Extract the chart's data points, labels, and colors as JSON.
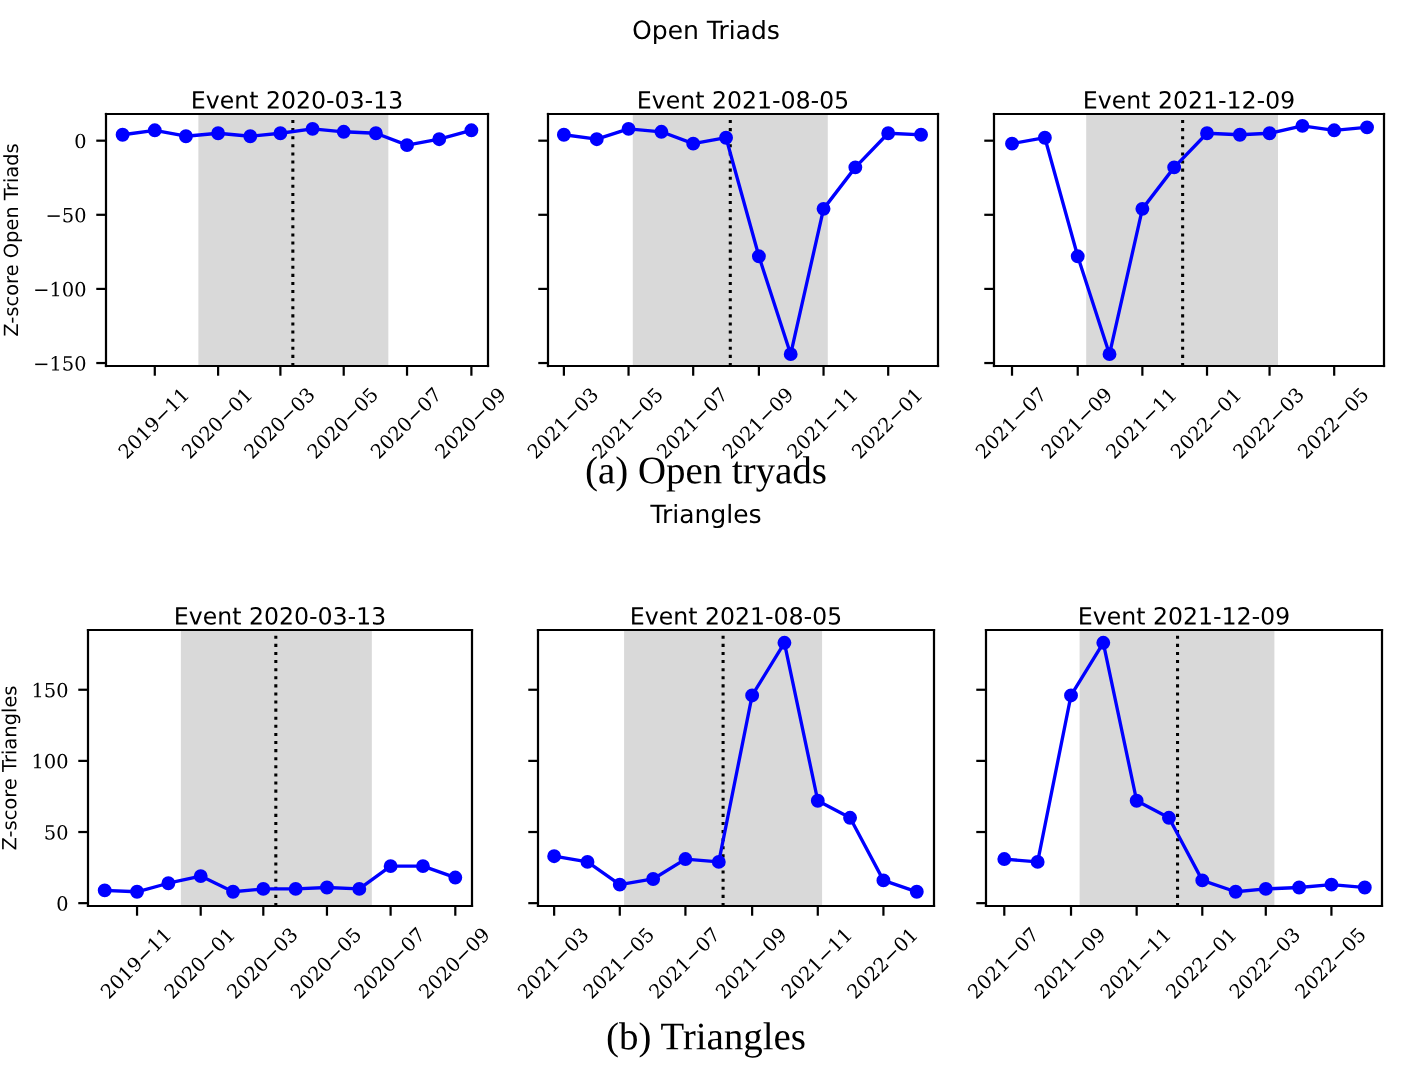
{
  "chart_data": [
    {
      "type": "line",
      "title": "Event 2020-03-13",
      "ylabel": "Z-score Open Triads",
      "annotations": [
        "Open Triads",
        "(a) Open tryads"
      ],
      "x": [
        "2019-10-01",
        "2019-11-01",
        "2019-12-01",
        "2020-01-01",
        "2020-02-01",
        "2020-03-01",
        "2020-04-01",
        "2020-05-01",
        "2020-06-01",
        "2020-07-01",
        "2020-08-01",
        "2020-09-01"
      ],
      "series": [
        {
          "color": "#0000ff",
          "values": [
            4,
            7,
            3,
            5,
            3,
            5,
            8,
            6,
            5,
            -3,
            1,
            7
          ]
        }
      ],
      "xlim": [
        "2019-09-15",
        "2020-09-17"
      ],
      "xticks": [
        {
          "value": "2019-11-01",
          "label": "2019−11"
        },
        {
          "value": "2020-01-01",
          "label": "2020−01"
        },
        {
          "value": "2020-03-01",
          "label": "2020−03"
        },
        {
          "value": "2020-05-01",
          "label": "2020−05"
        },
        {
          "value": "2020-07-01",
          "label": "2020−07"
        },
        {
          "value": "2020-09-01",
          "label": "2020−09"
        }
      ],
      "ylim": [
        -152,
        18
      ],
      "yticks": [
        {
          "value": -150,
          "label": "−150"
        },
        {
          "value": -100,
          "label": "−100"
        },
        {
          "value": -50,
          "label": "−50"
        },
        0
      ],
      "ref_lines": [
        {
          "axis": "x",
          "value": "2020-03-13",
          "color": "#000000",
          "line_style": "dotted"
        }
      ],
      "bands": [
        {
          "axis": "x",
          "from": "2019-12-13",
          "to": "2020-06-13",
          "color": "#d9d9d9"
        }
      ],
      "marker": "circle",
      "line_style": "solid",
      "grid": false,
      "legend": false
    },
    {
      "type": "line",
      "title": "Event 2021-08-05",
      "x": [
        "2021-03-01",
        "2021-04-01",
        "2021-05-01",
        "2021-06-01",
        "2021-07-01",
        "2021-08-01",
        "2021-09-01",
        "2021-10-01",
        "2021-11-01",
        "2021-12-01",
        "2022-01-01",
        "2022-02-01"
      ],
      "series": [
        {
          "color": "#0000ff",
          "values": [
            4,
            1,
            8,
            6,
            -2,
            2,
            -78,
            -144,
            -46,
            -18,
            5,
            4
          ]
        }
      ],
      "xlim": [
        "2021-02-14",
        "2022-02-17"
      ],
      "xticks": [
        {
          "value": "2021-03-01",
          "label": "2021−03"
        },
        {
          "value": "2021-05-01",
          "label": "2021−05"
        },
        {
          "value": "2021-07-01",
          "label": "2021−07"
        },
        {
          "value": "2021-09-01",
          "label": "2021−09"
        },
        {
          "value": "2021-11-01",
          "label": "2021−11"
        },
        {
          "value": "2022-01-01",
          "label": "2022−01"
        }
      ],
      "ylim": [
        -152,
        18
      ],
      "yticks": [
        {
          "value": -150,
          "label": null
        },
        {
          "value": -100,
          "label": null
        },
        {
          "value": -50,
          "label": null
        },
        {
          "value": 0,
          "label": null
        }
      ],
      "tick_labels": "x",
      "ref_lines": [
        {
          "axis": "x",
          "value": "2021-08-05",
          "color": "#000000",
          "line_style": "dotted"
        }
      ],
      "bands": [
        {
          "axis": "x",
          "from": "2021-05-05",
          "to": "2021-11-05",
          "color": "#d9d9d9"
        }
      ],
      "marker": "circle",
      "line_style": "solid",
      "grid": false,
      "legend": false
    },
    {
      "type": "line",
      "title": "Event 2021-12-09",
      "x": [
        "2021-07-01",
        "2021-08-01",
        "2021-09-01",
        "2021-10-01",
        "2021-11-01",
        "2021-12-01",
        "2022-01-01",
        "2022-02-01",
        "2022-03-01",
        "2022-04-01",
        "2022-05-01",
        "2022-06-01"
      ],
      "series": [
        {
          "color": "#0000ff",
          "values": [
            -2,
            2,
            -78,
            -144,
            -46,
            -18,
            5,
            4,
            5,
            10,
            7,
            9
          ]
        }
      ],
      "xlim": [
        "2021-06-14",
        "2022-06-17"
      ],
      "xticks": [
        {
          "value": "2021-07-01",
          "label": "2021−07"
        },
        {
          "value": "2021-09-01",
          "label": "2021−09"
        },
        {
          "value": "2021-11-01",
          "label": "2021−11"
        },
        {
          "value": "2022-01-01",
          "label": "2022−01"
        },
        {
          "value": "2022-03-01",
          "label": "2022−03"
        },
        {
          "value": "2022-05-01",
          "label": "2022−05"
        }
      ],
      "ylim": [
        -152,
        18
      ],
      "yticks": [
        {
          "value": -150,
          "label": null
        },
        {
          "value": -100,
          "label": null
        },
        {
          "value": -50,
          "label": null
        },
        {
          "value": 0,
          "label": null
        }
      ],
      "tick_labels": "x",
      "ref_lines": [
        {
          "axis": "x",
          "value": "2021-12-09",
          "color": "#000000",
          "line_style": "dotted"
        }
      ],
      "bands": [
        {
          "axis": "x",
          "from": "2021-09-09",
          "to": "2022-03-09",
          "color": "#d9d9d9"
        }
      ],
      "marker": "circle",
      "line_style": "solid",
      "grid": false,
      "legend": false
    },
    {
      "type": "line",
      "title": "Event 2020-03-13",
      "ylabel": "Z-score Triangles",
      "annotations": [
        "Triangles",
        "(b) Triangles"
      ],
      "x": [
        "2019-10-01",
        "2019-11-01",
        "2019-12-01",
        "2020-01-01",
        "2020-02-01",
        "2020-03-01",
        "2020-04-01",
        "2020-05-01",
        "2020-06-01",
        "2020-07-01",
        "2020-08-01",
        "2020-09-01"
      ],
      "series": [
        {
          "color": "#0000ff",
          "values": [
            9,
            8,
            14,
            19,
            8,
            10,
            10,
            11,
            10,
            26,
            26,
            18
          ]
        }
      ],
      "xlim": [
        "2019-09-15",
        "2020-09-17"
      ],
      "xticks": [
        {
          "value": "2019-11-01",
          "label": "2019−11"
        },
        {
          "value": "2020-01-01",
          "label": "2020−01"
        },
        {
          "value": "2020-03-01",
          "label": "2020−03"
        },
        {
          "value": "2020-05-01",
          "label": "2020−05"
        },
        {
          "value": "2020-07-01",
          "label": "2020−07"
        },
        {
          "value": "2020-09-01",
          "label": "2020−09"
        }
      ],
      "ylim": [
        -2,
        192
      ],
      "yticks": [
        0,
        50,
        100,
        150
      ],
      "ref_lines": [
        {
          "axis": "x",
          "value": "2020-03-13",
          "color": "#000000",
          "line_style": "dotted"
        }
      ],
      "bands": [
        {
          "axis": "x",
          "from": "2019-12-13",
          "to": "2020-06-13",
          "color": "#d9d9d9"
        }
      ],
      "marker": "circle",
      "line_style": "solid",
      "grid": false,
      "legend": false
    },
    {
      "type": "line",
      "title": "Event 2021-08-05",
      "x": [
        "2021-03-01",
        "2021-04-01",
        "2021-05-01",
        "2021-06-01",
        "2021-07-01",
        "2021-08-01",
        "2021-09-01",
        "2021-10-01",
        "2021-11-01",
        "2021-12-01",
        "2022-01-01",
        "2022-02-01"
      ],
      "series": [
        {
          "color": "#0000ff",
          "values": [
            33,
            29,
            13,
            17,
            31,
            29,
            146,
            183,
            72,
            60,
            16,
            8
          ]
        }
      ],
      "xlim": [
        "2021-02-14",
        "2022-02-17"
      ],
      "xticks": [
        {
          "value": "2021-03-01",
          "label": "2021−03"
        },
        {
          "value": "2021-05-01",
          "label": "2021−05"
        },
        {
          "value": "2021-07-01",
          "label": "2021−07"
        },
        {
          "value": "2021-09-01",
          "label": "2021−09"
        },
        {
          "value": "2021-11-01",
          "label": "2021−11"
        },
        {
          "value": "2022-01-01",
          "label": "2022−01"
        }
      ],
      "ylim": [
        -2,
        192
      ],
      "yticks": [
        {
          "value": 0,
          "label": null
        },
        {
          "value": 50,
          "label": null
        },
        {
          "value": 100,
          "label": null
        },
        {
          "value": 150,
          "label": null
        }
      ],
      "tick_labels": "x",
      "ref_lines": [
        {
          "axis": "x",
          "value": "2021-08-05",
          "color": "#000000",
          "line_style": "dotted"
        }
      ],
      "bands": [
        {
          "axis": "x",
          "from": "2021-05-05",
          "to": "2021-11-05",
          "color": "#d9d9d9"
        }
      ],
      "marker": "circle",
      "line_style": "solid",
      "grid": false,
      "legend": false
    },
    {
      "type": "line",
      "title": "Event 2021-12-09",
      "x": [
        "2021-07-01",
        "2021-08-01",
        "2021-09-01",
        "2021-10-01",
        "2021-11-01",
        "2021-12-01",
        "2022-01-01",
        "2022-02-01",
        "2022-03-01",
        "2022-04-01",
        "2022-05-01",
        "2022-06-01"
      ],
      "series": [
        {
          "color": "#0000ff",
          "values": [
            31,
            29,
            146,
            183,
            72,
            60,
            16,
            8,
            10,
            11,
            13,
            11
          ]
        }
      ],
      "xlim": [
        "2021-06-14",
        "2022-06-17"
      ],
      "xticks": [
        {
          "value": "2021-07-01",
          "label": "2021−07"
        },
        {
          "value": "2021-09-01",
          "label": "2021−09"
        },
        {
          "value": "2021-11-01",
          "label": "2021−11"
        },
        {
          "value": "2022-01-01",
          "label": "2022−01"
        },
        {
          "value": "2022-03-01",
          "label": "2022−03"
        },
        {
          "value": "2022-05-01",
          "label": "2022−05"
        }
      ],
      "ylim": [
        -2,
        192
      ],
      "yticks": [
        {
          "value": 0,
          "label": null
        },
        {
          "value": 50,
          "label": null
        },
        {
          "value": 100,
          "label": null
        },
        {
          "value": 150,
          "label": null
        }
      ],
      "tick_labels": "x",
      "ref_lines": [
        {
          "axis": "x",
          "value": "2021-12-09",
          "color": "#000000",
          "line_style": "dotted"
        }
      ],
      "bands": [
        {
          "axis": "x",
          "from": "2021-09-09",
          "to": "2022-03-09",
          "color": "#d9d9d9"
        }
      ],
      "marker": "circle",
      "line_style": "solid",
      "grid": false,
      "legend": false
    }
  ]
}
